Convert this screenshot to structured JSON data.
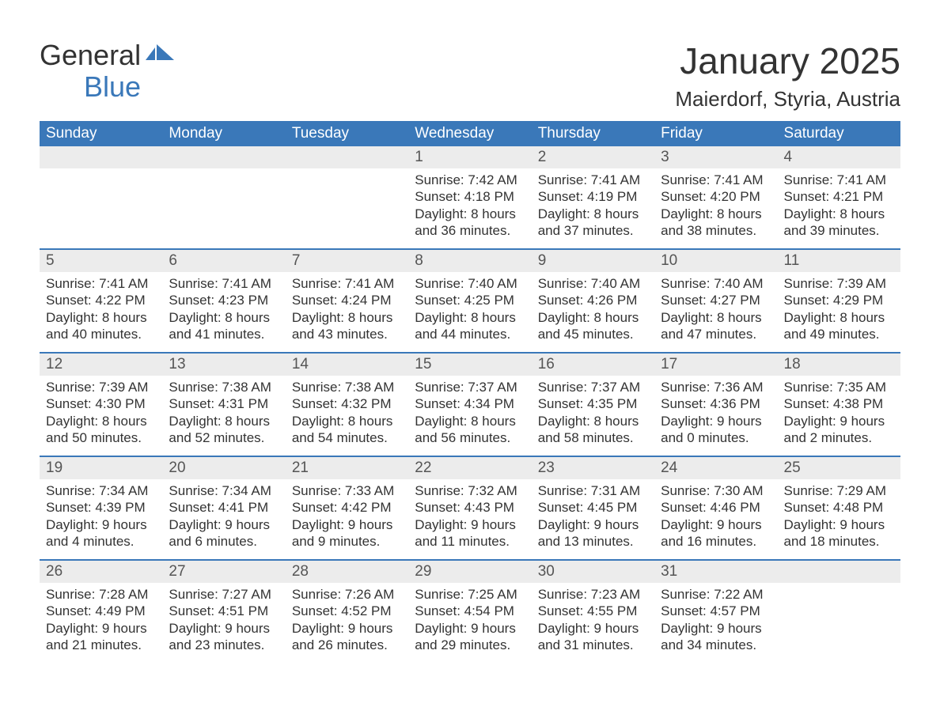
{
  "logo": {
    "text1": "General",
    "text2": "Blue"
  },
  "title": "January 2025",
  "location": "Maierdorf, Styria, Austria",
  "colors": {
    "header_bg": "#3a78b9",
    "header_text": "#ffffff",
    "daynum_bg": "#ececec",
    "row_border": "#3a78b9",
    "body_text": "#333333",
    "page_bg": "#ffffff"
  },
  "fonts": {
    "title_pt": 46,
    "location_pt": 26,
    "header_pt": 19,
    "daynum_pt": 19,
    "cell_pt": 17
  },
  "weekdays": [
    "Sunday",
    "Monday",
    "Tuesday",
    "Wednesday",
    "Thursday",
    "Friday",
    "Saturday"
  ],
  "weeks": [
    [
      null,
      null,
      null,
      {
        "n": "1",
        "sunrise": "Sunrise: 7:42 AM",
        "sunset": "Sunset: 4:18 PM",
        "daylight": "Daylight: 8 hours and 36 minutes."
      },
      {
        "n": "2",
        "sunrise": "Sunrise: 7:41 AM",
        "sunset": "Sunset: 4:19 PM",
        "daylight": "Daylight: 8 hours and 37 minutes."
      },
      {
        "n": "3",
        "sunrise": "Sunrise: 7:41 AM",
        "sunset": "Sunset: 4:20 PM",
        "daylight": "Daylight: 8 hours and 38 minutes."
      },
      {
        "n": "4",
        "sunrise": "Sunrise: 7:41 AM",
        "sunset": "Sunset: 4:21 PM",
        "daylight": "Daylight: 8 hours and 39 minutes."
      }
    ],
    [
      {
        "n": "5",
        "sunrise": "Sunrise: 7:41 AM",
        "sunset": "Sunset: 4:22 PM",
        "daylight": "Daylight: 8 hours and 40 minutes."
      },
      {
        "n": "6",
        "sunrise": "Sunrise: 7:41 AM",
        "sunset": "Sunset: 4:23 PM",
        "daylight": "Daylight: 8 hours and 41 minutes."
      },
      {
        "n": "7",
        "sunrise": "Sunrise: 7:41 AM",
        "sunset": "Sunset: 4:24 PM",
        "daylight": "Daylight: 8 hours and 43 minutes."
      },
      {
        "n": "8",
        "sunrise": "Sunrise: 7:40 AM",
        "sunset": "Sunset: 4:25 PM",
        "daylight": "Daylight: 8 hours and 44 minutes."
      },
      {
        "n": "9",
        "sunrise": "Sunrise: 7:40 AM",
        "sunset": "Sunset: 4:26 PM",
        "daylight": "Daylight: 8 hours and 45 minutes."
      },
      {
        "n": "10",
        "sunrise": "Sunrise: 7:40 AM",
        "sunset": "Sunset: 4:27 PM",
        "daylight": "Daylight: 8 hours and 47 minutes."
      },
      {
        "n": "11",
        "sunrise": "Sunrise: 7:39 AM",
        "sunset": "Sunset: 4:29 PM",
        "daylight": "Daylight: 8 hours and 49 minutes."
      }
    ],
    [
      {
        "n": "12",
        "sunrise": "Sunrise: 7:39 AM",
        "sunset": "Sunset: 4:30 PM",
        "daylight": "Daylight: 8 hours and 50 minutes."
      },
      {
        "n": "13",
        "sunrise": "Sunrise: 7:38 AM",
        "sunset": "Sunset: 4:31 PM",
        "daylight": "Daylight: 8 hours and 52 minutes."
      },
      {
        "n": "14",
        "sunrise": "Sunrise: 7:38 AM",
        "sunset": "Sunset: 4:32 PM",
        "daylight": "Daylight: 8 hours and 54 minutes."
      },
      {
        "n": "15",
        "sunrise": "Sunrise: 7:37 AM",
        "sunset": "Sunset: 4:34 PM",
        "daylight": "Daylight: 8 hours and 56 minutes."
      },
      {
        "n": "16",
        "sunrise": "Sunrise: 7:37 AM",
        "sunset": "Sunset: 4:35 PM",
        "daylight": "Daylight: 8 hours and 58 minutes."
      },
      {
        "n": "17",
        "sunrise": "Sunrise: 7:36 AM",
        "sunset": "Sunset: 4:36 PM",
        "daylight": "Daylight: 9 hours and 0 minutes."
      },
      {
        "n": "18",
        "sunrise": "Sunrise: 7:35 AM",
        "sunset": "Sunset: 4:38 PM",
        "daylight": "Daylight: 9 hours and 2 minutes."
      }
    ],
    [
      {
        "n": "19",
        "sunrise": "Sunrise: 7:34 AM",
        "sunset": "Sunset: 4:39 PM",
        "daylight": "Daylight: 9 hours and 4 minutes."
      },
      {
        "n": "20",
        "sunrise": "Sunrise: 7:34 AM",
        "sunset": "Sunset: 4:41 PM",
        "daylight": "Daylight: 9 hours and 6 minutes."
      },
      {
        "n": "21",
        "sunrise": "Sunrise: 7:33 AM",
        "sunset": "Sunset: 4:42 PM",
        "daylight": "Daylight: 9 hours and 9 minutes."
      },
      {
        "n": "22",
        "sunrise": "Sunrise: 7:32 AM",
        "sunset": "Sunset: 4:43 PM",
        "daylight": "Daylight: 9 hours and 11 minutes."
      },
      {
        "n": "23",
        "sunrise": "Sunrise: 7:31 AM",
        "sunset": "Sunset: 4:45 PM",
        "daylight": "Daylight: 9 hours and 13 minutes."
      },
      {
        "n": "24",
        "sunrise": "Sunrise: 7:30 AM",
        "sunset": "Sunset: 4:46 PM",
        "daylight": "Daylight: 9 hours and 16 minutes."
      },
      {
        "n": "25",
        "sunrise": "Sunrise: 7:29 AM",
        "sunset": "Sunset: 4:48 PM",
        "daylight": "Daylight: 9 hours and 18 minutes."
      }
    ],
    [
      {
        "n": "26",
        "sunrise": "Sunrise: 7:28 AM",
        "sunset": "Sunset: 4:49 PM",
        "daylight": "Daylight: 9 hours and 21 minutes."
      },
      {
        "n": "27",
        "sunrise": "Sunrise: 7:27 AM",
        "sunset": "Sunset: 4:51 PM",
        "daylight": "Daylight: 9 hours and 23 minutes."
      },
      {
        "n": "28",
        "sunrise": "Sunrise: 7:26 AM",
        "sunset": "Sunset: 4:52 PM",
        "daylight": "Daylight: 9 hours and 26 minutes."
      },
      {
        "n": "29",
        "sunrise": "Sunrise: 7:25 AM",
        "sunset": "Sunset: 4:54 PM",
        "daylight": "Daylight: 9 hours and 29 minutes."
      },
      {
        "n": "30",
        "sunrise": "Sunrise: 7:23 AM",
        "sunset": "Sunset: 4:55 PM",
        "daylight": "Daylight: 9 hours and 31 minutes."
      },
      {
        "n": "31",
        "sunrise": "Sunrise: 7:22 AM",
        "sunset": "Sunset: 4:57 PM",
        "daylight": "Daylight: 9 hours and 34 minutes."
      },
      null
    ]
  ]
}
